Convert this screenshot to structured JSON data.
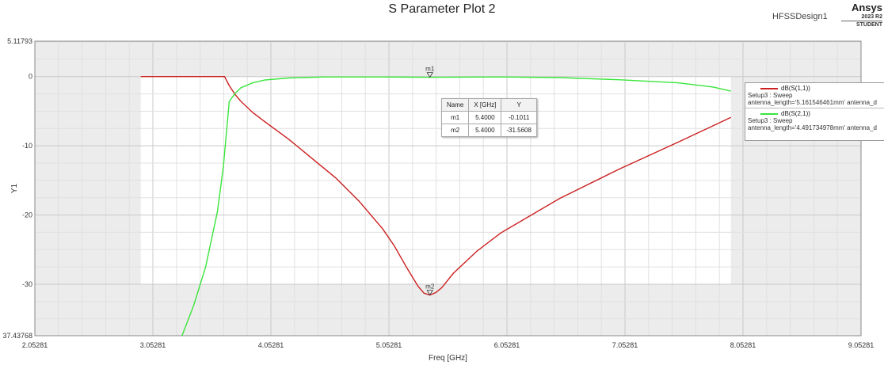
{
  "header": {
    "title": "S Parameter Plot 2",
    "design": "HFSSDesign1",
    "brand": "Ansys",
    "version": "2023 R2",
    "edition": "STUDENT"
  },
  "chart_data": {
    "type": "line",
    "title": "S Parameter Plot 2",
    "xlabel": "Freq [GHz]",
    "ylabel": "Y1",
    "xlim": [
      2.05281,
      9.05281
    ],
    "ylim": [
      -37.43768,
      5.11793
    ],
    "x_ticks": [
      "2.05281",
      "3.05281",
      "4.05281",
      "5.05281",
      "6.05281",
      "7.05281",
      "8.05281",
      "9.05281"
    ],
    "y_tick_labels": [
      {
        "value": 5.11793,
        "label": "5.11793"
      },
      {
        "value": 0,
        "label": "0"
      },
      {
        "value": -10,
        "label": "-10"
      },
      {
        "value": -20,
        "label": "-20"
      },
      {
        "value": -30,
        "label": "-30"
      },
      {
        "value": -37.43768,
        "label": "37.43768"
      }
    ],
    "grid": true,
    "legend_position": "right",
    "sweep_range": [
      2.95,
      7.95
    ],
    "series": [
      {
        "name": "dB(S(1,1))",
        "setup": "Setup3 : Sweep",
        "params": "antenna_length='5.161546461mm' antenna_d",
        "color": "#cc1f1f",
        "x": [
          2.95,
          3.3,
          3.66,
          3.7,
          3.75,
          3.8,
          3.9,
          4.0,
          4.2,
          4.4,
          4.6,
          4.8,
          5.0,
          5.1,
          5.2,
          5.3,
          5.35,
          5.4,
          5.45,
          5.5,
          5.6,
          5.8,
          6.0,
          6.5,
          7.0,
          7.5,
          7.95
        ],
        "y": [
          0.0,
          0.0,
          0.0,
          -1.3,
          -2.6,
          -3.6,
          -5.2,
          -6.5,
          -9.0,
          -11.8,
          -14.6,
          -18.0,
          -22.0,
          -24.5,
          -27.5,
          -30.3,
          -31.3,
          -31.5608,
          -31.2,
          -30.5,
          -28.4,
          -25.2,
          -22.6,
          -17.6,
          -13.4,
          -9.5,
          -5.9
        ]
      },
      {
        "name": "dB(S(2,1))",
        "setup": "Setup3 : Sweep",
        "params": "antenna_length='4.491734978mm' antenna_d",
        "color": "#39e53a",
        "x": [
          3.3,
          3.4,
          3.5,
          3.6,
          3.65,
          3.7,
          3.75,
          3.8,
          3.9,
          4.0,
          4.2,
          4.5,
          5.0,
          5.4,
          6.0,
          6.5,
          7.0,
          7.5,
          7.8,
          7.95
        ],
        "y": [
          -37.43768,
          -33.0,
          -27.5,
          -19.5,
          -13.0,
          -3.6,
          -2.4,
          -1.6,
          -0.9,
          -0.5,
          -0.2,
          -0.05,
          -0.05,
          -0.1011,
          -0.05,
          -0.15,
          -0.45,
          -0.9,
          -1.5,
          -2.1
        ]
      }
    ],
    "markers": [
      {
        "name": "m1",
        "x": 5.4,
        "x_label": "5.4000",
        "y": -0.1011,
        "y_label": "-0.1011"
      },
      {
        "name": "m2",
        "x": 5.4,
        "x_label": "5.4000",
        "y": -31.5608,
        "y_label": "-31.5608"
      }
    ],
    "marker_table": {
      "headers": [
        "Name",
        "X [GHz]",
        "Y"
      ]
    }
  }
}
